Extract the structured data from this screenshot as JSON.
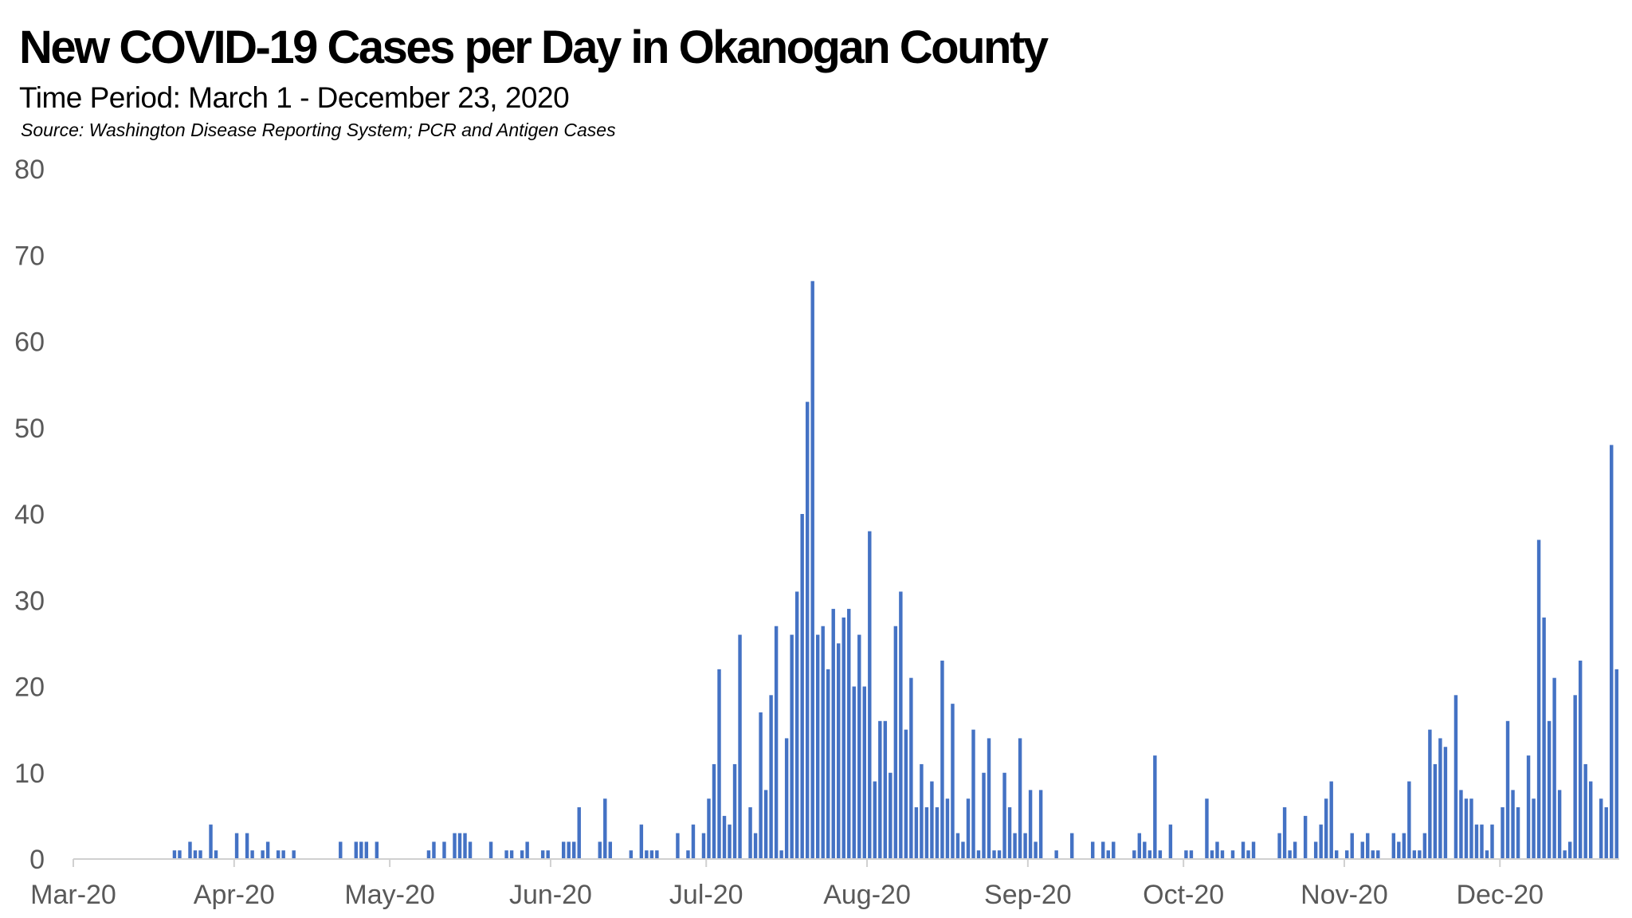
{
  "chart_data": {
    "type": "bar",
    "title": "New COVID-19 Cases per Day in Okanogan County",
    "subtitle": "Time Period: March  1 - December 23, 2020",
    "source": "Source: Washington Disease Reporting System; PCR and Antigen Cases",
    "xlabel": "",
    "ylabel": "",
    "x_start": "2020-03-01",
    "x_end": "2020-12-23",
    "ylim": [
      0,
      80
    ],
    "yticks": [
      0,
      10,
      20,
      30,
      40,
      50,
      60,
      70,
      80
    ],
    "xticks": [
      {
        "date": "2020-03-01",
        "label": "Mar-20"
      },
      {
        "date": "2020-04-01",
        "label": "Apr-20"
      },
      {
        "date": "2020-05-01",
        "label": "May-20"
      },
      {
        "date": "2020-06-01",
        "label": "Jun-20"
      },
      {
        "date": "2020-07-01",
        "label": "Jul-20"
      },
      {
        "date": "2020-08-01",
        "label": "Aug-20"
      },
      {
        "date": "2020-09-01",
        "label": "Sep-20"
      },
      {
        "date": "2020-10-01",
        "label": "Oct-20"
      },
      {
        "date": "2020-11-01",
        "label": "Nov-20"
      },
      {
        "date": "2020-12-01",
        "label": "Dec-20"
      }
    ],
    "grid": false,
    "bar_color": "#4472C4",
    "series": [
      {
        "points": [
          [
            "2020-03-20",
            1
          ],
          [
            "2020-03-21",
            1
          ],
          [
            "2020-03-23",
            2
          ],
          [
            "2020-03-24",
            1
          ],
          [
            "2020-03-25",
            1
          ],
          [
            "2020-03-27",
            4
          ],
          [
            "2020-03-28",
            1
          ],
          [
            "2020-04-01",
            3
          ],
          [
            "2020-04-03",
            3
          ],
          [
            "2020-04-04",
            1
          ],
          [
            "2020-04-06",
            1
          ],
          [
            "2020-04-07",
            2
          ],
          [
            "2020-04-09",
            1
          ],
          [
            "2020-04-10",
            1
          ],
          [
            "2020-04-12",
            1
          ],
          [
            "2020-04-21",
            2
          ],
          [
            "2020-04-24",
            2
          ],
          [
            "2020-04-25",
            2
          ],
          [
            "2020-04-26",
            2
          ],
          [
            "2020-04-28",
            2
          ],
          [
            "2020-05-08",
            1
          ],
          [
            "2020-05-09",
            2
          ],
          [
            "2020-05-11",
            2
          ],
          [
            "2020-05-13",
            3
          ],
          [
            "2020-05-14",
            3
          ],
          [
            "2020-05-15",
            3
          ],
          [
            "2020-05-16",
            2
          ],
          [
            "2020-05-20",
            2
          ],
          [
            "2020-05-23",
            1
          ],
          [
            "2020-05-24",
            1
          ],
          [
            "2020-05-26",
            1
          ],
          [
            "2020-05-27",
            2
          ],
          [
            "2020-05-30",
            1
          ],
          [
            "2020-05-31",
            1
          ],
          [
            "2020-06-03",
            2
          ],
          [
            "2020-06-04",
            2
          ],
          [
            "2020-06-05",
            2
          ],
          [
            "2020-06-06",
            6
          ],
          [
            "2020-06-10",
            2
          ],
          [
            "2020-06-11",
            7
          ],
          [
            "2020-06-12",
            2
          ],
          [
            "2020-06-16",
            1
          ],
          [
            "2020-06-18",
            4
          ],
          [
            "2020-06-19",
            1
          ],
          [
            "2020-06-20",
            1
          ],
          [
            "2020-06-21",
            1
          ],
          [
            "2020-06-25",
            3
          ],
          [
            "2020-06-27",
            1
          ],
          [
            "2020-06-28",
            4
          ],
          [
            "2020-06-30",
            3
          ],
          [
            "2020-07-01",
            7
          ],
          [
            "2020-07-02",
            11
          ],
          [
            "2020-07-03",
            22
          ],
          [
            "2020-07-04",
            5
          ],
          [
            "2020-07-05",
            4
          ],
          [
            "2020-07-06",
            11
          ],
          [
            "2020-07-07",
            26
          ],
          [
            "2020-07-09",
            6
          ],
          [
            "2020-07-10",
            3
          ],
          [
            "2020-07-11",
            17
          ],
          [
            "2020-07-12",
            8
          ],
          [
            "2020-07-13",
            19
          ],
          [
            "2020-07-14",
            27
          ],
          [
            "2020-07-15",
            1
          ],
          [
            "2020-07-16",
            14
          ],
          [
            "2020-07-17",
            26
          ],
          [
            "2020-07-18",
            31
          ],
          [
            "2020-07-19",
            40
          ],
          [
            "2020-07-20",
            53
          ],
          [
            "2020-07-21",
            67
          ],
          [
            "2020-07-22",
            26
          ],
          [
            "2020-07-23",
            27
          ],
          [
            "2020-07-24",
            22
          ],
          [
            "2020-07-25",
            29
          ],
          [
            "2020-07-26",
            25
          ],
          [
            "2020-07-27",
            28
          ],
          [
            "2020-07-28",
            29
          ],
          [
            "2020-07-29",
            20
          ],
          [
            "2020-07-30",
            26
          ],
          [
            "2020-07-31",
            20
          ],
          [
            "2020-08-01",
            38
          ],
          [
            "2020-08-02",
            9
          ],
          [
            "2020-08-03",
            16
          ],
          [
            "2020-08-04",
            16
          ],
          [
            "2020-08-05",
            10
          ],
          [
            "2020-08-06",
            27
          ],
          [
            "2020-08-07",
            31
          ],
          [
            "2020-08-08",
            15
          ],
          [
            "2020-08-09",
            21
          ],
          [
            "2020-08-10",
            6
          ],
          [
            "2020-08-11",
            11
          ],
          [
            "2020-08-12",
            6
          ],
          [
            "2020-08-13",
            9
          ],
          [
            "2020-08-14",
            6
          ],
          [
            "2020-08-15",
            23
          ],
          [
            "2020-08-16",
            7
          ],
          [
            "2020-08-17",
            18
          ],
          [
            "2020-08-18",
            3
          ],
          [
            "2020-08-19",
            2
          ],
          [
            "2020-08-20",
            7
          ],
          [
            "2020-08-21",
            15
          ],
          [
            "2020-08-22",
            1
          ],
          [
            "2020-08-23",
            10
          ],
          [
            "2020-08-24",
            14
          ],
          [
            "2020-08-25",
            1
          ],
          [
            "2020-08-26",
            1
          ],
          [
            "2020-08-27",
            10
          ],
          [
            "2020-08-28",
            6
          ],
          [
            "2020-08-29",
            3
          ],
          [
            "2020-08-30",
            14
          ],
          [
            "2020-08-31",
            3
          ],
          [
            "2020-09-01",
            8
          ],
          [
            "2020-09-02",
            2
          ],
          [
            "2020-09-03",
            8
          ],
          [
            "2020-09-06",
            1
          ],
          [
            "2020-09-09",
            3
          ],
          [
            "2020-09-13",
            2
          ],
          [
            "2020-09-15",
            2
          ],
          [
            "2020-09-16",
            1
          ],
          [
            "2020-09-17",
            2
          ],
          [
            "2020-09-21",
            1
          ],
          [
            "2020-09-22",
            3
          ],
          [
            "2020-09-23",
            2
          ],
          [
            "2020-09-24",
            1
          ],
          [
            "2020-09-25",
            12
          ],
          [
            "2020-09-26",
            1
          ],
          [
            "2020-09-28",
            4
          ],
          [
            "2020-10-01",
            1
          ],
          [
            "2020-10-02",
            1
          ],
          [
            "2020-10-05",
            7
          ],
          [
            "2020-10-06",
            1
          ],
          [
            "2020-10-07",
            2
          ],
          [
            "2020-10-08",
            1
          ],
          [
            "2020-10-10",
            1
          ],
          [
            "2020-10-12",
            2
          ],
          [
            "2020-10-13",
            1
          ],
          [
            "2020-10-14",
            2
          ],
          [
            "2020-10-19",
            3
          ],
          [
            "2020-10-20",
            6
          ],
          [
            "2020-10-21",
            1
          ],
          [
            "2020-10-22",
            2
          ],
          [
            "2020-10-24",
            5
          ],
          [
            "2020-10-26",
            2
          ],
          [
            "2020-10-27",
            4
          ],
          [
            "2020-10-28",
            7
          ],
          [
            "2020-10-29",
            9
          ],
          [
            "2020-10-30",
            1
          ],
          [
            "2020-11-01",
            1
          ],
          [
            "2020-11-02",
            3
          ],
          [
            "2020-11-04",
            2
          ],
          [
            "2020-11-05",
            3
          ],
          [
            "2020-11-06",
            1
          ],
          [
            "2020-11-07",
            1
          ],
          [
            "2020-11-10",
            3
          ],
          [
            "2020-11-11",
            2
          ],
          [
            "2020-11-12",
            3
          ],
          [
            "2020-11-13",
            9
          ],
          [
            "2020-11-14",
            1
          ],
          [
            "2020-11-15",
            1
          ],
          [
            "2020-11-16",
            3
          ],
          [
            "2020-11-17",
            15
          ],
          [
            "2020-11-18",
            11
          ],
          [
            "2020-11-19",
            14
          ],
          [
            "2020-11-20",
            13
          ],
          [
            "2020-11-22",
            19
          ],
          [
            "2020-11-23",
            8
          ],
          [
            "2020-11-24",
            7
          ],
          [
            "2020-11-25",
            7
          ],
          [
            "2020-11-26",
            4
          ],
          [
            "2020-11-27",
            4
          ],
          [
            "2020-11-28",
            1
          ],
          [
            "2020-11-29",
            4
          ],
          [
            "2020-12-01",
            6
          ],
          [
            "2020-12-02",
            16
          ],
          [
            "2020-12-03",
            8
          ],
          [
            "2020-12-04",
            6
          ],
          [
            "2020-12-06",
            12
          ],
          [
            "2020-12-07",
            7
          ],
          [
            "2020-12-08",
            37
          ],
          [
            "2020-12-09",
            28
          ],
          [
            "2020-12-10",
            16
          ],
          [
            "2020-12-11",
            21
          ],
          [
            "2020-12-12",
            8
          ],
          [
            "2020-12-13",
            1
          ],
          [
            "2020-12-14",
            2
          ],
          [
            "2020-12-15",
            19
          ],
          [
            "2020-12-16",
            23
          ],
          [
            "2020-12-17",
            11
          ],
          [
            "2020-12-18",
            9
          ],
          [
            "2020-12-20",
            7
          ],
          [
            "2020-12-21",
            6
          ],
          [
            "2020-12-22",
            48
          ],
          [
            "2020-12-23",
            22
          ]
        ]
      }
    ]
  }
}
